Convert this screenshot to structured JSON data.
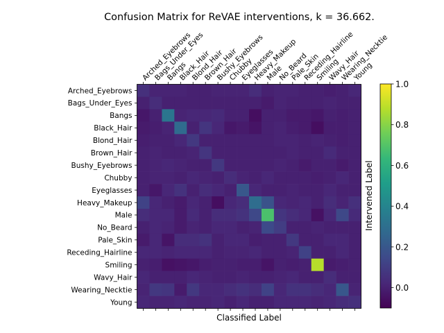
{
  "chart_data": {
    "type": "heatmap",
    "title": "Confusion Matrix for ReVAE interventions, k = 36.662.",
    "xlabel": "Classified Label",
    "ylabel": "Intervened Label",
    "labels": [
      "Arched_Eyebrows",
      "Bags_Under_Eyes",
      "Bangs",
      "Black_Hair",
      "Blond_Hair",
      "Brown_Hair",
      "Bushy_Eyebrows",
      "Chubby",
      "Eyeglasses",
      "Heavy_Makeup",
      "Male",
      "No_Beard",
      "Pale_Skin",
      "Receding_Hairline",
      "Smiling",
      "Wavy_Hair",
      "Wearing_Necktie",
      "Young"
    ],
    "colorbar": {
      "min": -0.1,
      "max": 1.0,
      "ticks": [
        "0.0",
        "0.2",
        "0.4",
        "0.6",
        "0.8",
        "1.0"
      ],
      "tick_values": [
        0.0,
        0.2,
        0.4,
        0.6,
        0.8,
        1.0
      ]
    },
    "colormap": [
      "#440154",
      "#482878",
      "#3e4989",
      "#31688e",
      "#26828e",
      "#1f9e89",
      "#35b779",
      "#6ece58",
      "#b5de2b",
      "#fde725"
    ],
    "matrix": [
      [
        0.05,
        0.01,
        0.01,
        0.01,
        0.0,
        0.0,
        0.01,
        0.01,
        0.01,
        0.04,
        0.0,
        0.01,
        0.01,
        0.0,
        0.0,
        -0.01,
        0.0,
        0.02
      ],
      [
        0.0,
        0.04,
        0.0,
        0.0,
        0.0,
        0.0,
        0.0,
        0.0,
        0.0,
        0.0,
        -0.02,
        0.01,
        0.0,
        0.0,
        0.0,
        0.01,
        0.0,
        0.0
      ],
      [
        -0.03,
        0.0,
        0.33,
        0.01,
        0.02,
        0.02,
        0.03,
        0.0,
        0.0,
        -0.06,
        0.0,
        0.0,
        -0.02,
        -0.02,
        -0.03,
        0.0,
        -0.01,
        0.0
      ],
      [
        -0.02,
        -0.01,
        0.01,
        0.28,
        0.0,
        0.07,
        0.02,
        -0.03,
        -0.02,
        -0.04,
        0.0,
        0.01,
        -0.01,
        -0.02,
        -0.06,
        -0.01,
        -0.01,
        0.0
      ],
      [
        -0.01,
        0.0,
        0.0,
        0.02,
        0.08,
        0.0,
        0.0,
        0.0,
        0.0,
        0.0,
        0.0,
        0.01,
        0.01,
        0.0,
        0.01,
        0.0,
        -0.01,
        0.0
      ],
      [
        0.0,
        0.01,
        0.0,
        0.0,
        0.01,
        0.07,
        0.0,
        0.0,
        0.0,
        0.0,
        0.0,
        0.0,
        0.01,
        0.0,
        0.0,
        0.03,
        0.0,
        0.0
      ],
      [
        0.0,
        0.01,
        0.02,
        0.01,
        0.0,
        0.0,
        0.08,
        0.0,
        0.0,
        0.0,
        0.0,
        0.01,
        0.0,
        -0.02,
        0.0,
        0.0,
        -0.02,
        0.0
      ],
      [
        0.0,
        0.01,
        0.01,
        0.0,
        0.02,
        0.01,
        0.0,
        0.04,
        0.01,
        0.0,
        0.02,
        0.0,
        0.0,
        0.0,
        -0.01,
        0.0,
        0.02,
        0.0
      ],
      [
        0.0,
        -0.03,
        0.02,
        0.06,
        0.0,
        0.04,
        0.02,
        0.0,
        0.2,
        0.02,
        0.0,
        0.0,
        0.01,
        0.0,
        0.0,
        0.02,
        0.0,
        0.0
      ],
      [
        0.12,
        0.02,
        0.0,
        -0.02,
        0.02,
        0.0,
        -0.06,
        0.02,
        0.04,
        0.29,
        0.18,
        0.02,
        0.01,
        0.02,
        0.0,
        0.04,
        0.01,
        0.05
      ],
      [
        0.04,
        0.02,
        0.02,
        -0.02,
        0.03,
        0.0,
        0.04,
        0.04,
        0.06,
        0.14,
        0.68,
        0.07,
        0.04,
        0.02,
        -0.05,
        0.02,
        0.14,
        0.03
      ],
      [
        0.0,
        0.02,
        0.01,
        -0.02,
        0.01,
        0.0,
        0.02,
        0.02,
        0.0,
        0.01,
        0.15,
        0.1,
        0.0,
        0.0,
        0.01,
        0.0,
        0.0,
        0.0
      ],
      [
        -0.02,
        0.02,
        -0.04,
        0.04,
        0.04,
        0.06,
        0.0,
        0.02,
        0.02,
        -0.01,
        0.0,
        0.0,
        0.08,
        0.0,
        0.0,
        0.02,
        0.02,
        0.0
      ],
      [
        0.02,
        0.02,
        0.01,
        0.02,
        0.02,
        0.02,
        0.0,
        0.01,
        0.01,
        0.02,
        0.0,
        0.0,
        0.01,
        0.12,
        0.0,
        0.0,
        0.02,
        0.0
      ],
      [
        0.0,
        -0.01,
        -0.05,
        -0.04,
        -0.03,
        -0.01,
        0.0,
        0.0,
        -0.01,
        -0.01,
        -0.04,
        0.0,
        -0.01,
        0.0,
        0.88,
        -0.02,
        -0.01,
        0.0
      ],
      [
        0.02,
        0.0,
        0.0,
        0.0,
        0.02,
        0.01,
        0.0,
        0.0,
        0.01,
        0.0,
        0.0,
        0.01,
        0.02,
        0.0,
        0.0,
        0.04,
        0.0,
        0.0
      ],
      [
        0.01,
        0.08,
        0.07,
        -0.02,
        0.08,
        0.02,
        0.02,
        0.04,
        0.06,
        0.04,
        0.12,
        0.02,
        0.06,
        0.06,
        0.04,
        0.02,
        0.2,
        0.01
      ],
      [
        0.02,
        0.01,
        0.01,
        0.02,
        0.01,
        0.01,
        0.02,
        0.0,
        0.02,
        0.0,
        0.0,
        0.02,
        0.02,
        0.02,
        0.01,
        0.02,
        0.04,
        0.05
      ]
    ]
  }
}
